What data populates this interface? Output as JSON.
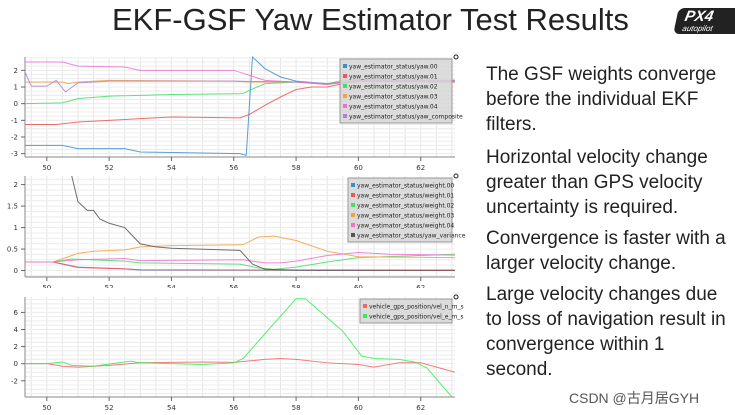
{
  "title": "EKF-GSF Yaw Estimator Test Results",
  "logo_text": "PX4 autopilot",
  "bullets": [
    "The GSF weights converge before the individual EKF filters.",
    "Horizontal velocity change greater than GPS velocity uncertainty is required.",
    "Convergence is faster with a larger velocity change.",
    "Large velocity changes due to loss of navigation result in convergence within 1 second."
  ],
  "watermark": "CSDN @古月居GYH",
  "chart_data": [
    {
      "type": "line",
      "xlim": [
        49.3,
        63.1
      ],
      "ylim": [
        -3.2,
        2.8
      ],
      "xticks": [
        50,
        52,
        54,
        56,
        58,
        60,
        62
      ],
      "yticks": [
        -3,
        -2,
        -1,
        0,
        1,
        2
      ],
      "grid": true,
      "legend": "top-right",
      "series": [
        {
          "name": "yaw_estimator_status/yaw.00",
          "color": "#3b8fd0",
          "points": [
            [
              49.3,
              -2.5
            ],
            [
              50.5,
              -2.5
            ],
            [
              51,
              -2.7
            ],
            [
              52.5,
              -2.7
            ],
            [
              53,
              -2.9
            ],
            [
              56.2,
              -3.0
            ],
            [
              56.4,
              -3.1
            ],
            [
              56.6,
              2.8
            ],
            [
              57,
              2.1
            ],
            [
              57.5,
              1.6
            ],
            [
              58,
              1.35
            ],
            [
              59,
              1.2
            ],
            [
              60,
              1.35
            ],
            [
              63.1,
              1.4
            ]
          ]
        },
        {
          "name": "yaw_estimator_status/yaw.01",
          "color": "#ee5555",
          "points": [
            [
              49.3,
              -1.25
            ],
            [
              50.3,
              -1.25
            ],
            [
              51,
              -1.1
            ],
            [
              53,
              -0.9
            ],
            [
              54,
              -0.8
            ],
            [
              56.2,
              -0.85
            ],
            [
              56.5,
              -0.65
            ],
            [
              57,
              -0.1
            ],
            [
              57.5,
              0.4
            ],
            [
              58,
              0.85
            ],
            [
              58.5,
              1.0
            ],
            [
              59,
              1.0
            ],
            [
              59.5,
              1.2
            ],
            [
              60,
              1.35
            ],
            [
              63.1,
              1.3
            ]
          ]
        },
        {
          "name": "yaw_estimator_status/yaw.02",
          "color": "#44dd66",
          "points": [
            [
              49.3,
              0
            ],
            [
              50.5,
              0.05
            ],
            [
              51,
              0.3
            ],
            [
              52,
              0.45
            ],
            [
              54,
              0.55
            ],
            [
              56.3,
              0.6
            ],
            [
              56.5,
              0.8
            ],
            [
              57,
              1.2
            ],
            [
              58,
              1.3
            ],
            [
              59,
              1.2
            ],
            [
              59.5,
              1.4
            ],
            [
              60,
              1.45
            ],
            [
              63.1,
              1.4
            ]
          ]
        },
        {
          "name": "yaw_estimator_status/yaw.03",
          "color": "#f5a040",
          "points": [
            [
              49.3,
              1.3
            ],
            [
              50.5,
              1.3
            ],
            [
              50.7,
              1.2
            ],
            [
              51,
              1.3
            ],
            [
              52,
              1.4
            ],
            [
              56,
              1.35
            ],
            [
              56.5,
              1.3
            ],
            [
              58,
              1.3
            ],
            [
              59,
              1.15
            ],
            [
              60,
              1.4
            ],
            [
              63.1,
              1.4
            ]
          ]
        },
        {
          "name": "yaw_estimator_status/yaw.04",
          "color": "#f070d0",
          "points": [
            [
              49.3,
              2.5
            ],
            [
              50.5,
              2.5
            ],
            [
              51,
              2.25
            ],
            [
              52.5,
              2.2
            ],
            [
              53,
              2.0
            ],
            [
              56,
              2.0
            ],
            [
              56.5,
              1.7
            ],
            [
              57,
              1.4
            ],
            [
              58,
              1.3
            ],
            [
              59,
              1.2
            ],
            [
              60,
              1.4
            ],
            [
              63.1,
              1.35
            ]
          ]
        },
        {
          "name": "yaw_estimator_status/yaw_composite",
          "color": "#b080d8",
          "points": [
            [
              49.3,
              1.9
            ],
            [
              49.5,
              1.05
            ],
            [
              50,
              1.05
            ],
            [
              50.3,
              1.4
            ],
            [
              50.6,
              0.7
            ],
            [
              51,
              1.25
            ],
            [
              52,
              1.35
            ],
            [
              56,
              1.35
            ],
            [
              58,
              1.3
            ],
            [
              59,
              1.15
            ],
            [
              60,
              1.4
            ],
            [
              63.1,
              1.4
            ]
          ]
        }
      ]
    },
    {
      "type": "line",
      "xlim": [
        49.3,
        63.1
      ],
      "ylim": [
        -0.15,
        2.2
      ],
      "xticks": [
        50,
        52,
        54,
        56,
        58,
        60,
        62
      ],
      "yticks": [
        0,
        0.5,
        1,
        1.5,
        2
      ],
      "grid": true,
      "legend": "top-right",
      "series": [
        {
          "name": "yaw_estimator_status/weight.00",
          "color": "#3b8fd0",
          "points": [
            [
              49.3,
              0.2
            ],
            [
              50.2,
              0.2
            ],
            [
              51,
              0.08
            ],
            [
              52.5,
              0.04
            ],
            [
              53,
              0.01
            ],
            [
              63.1,
              0
            ]
          ]
        },
        {
          "name": "yaw_estimator_status/weight.01",
          "color": "#ee5555",
          "points": [
            [
              49.3,
              0.2
            ],
            [
              50.2,
              0.2
            ],
            [
              51,
              0.07
            ],
            [
              52.5,
              0.04
            ],
            [
              53,
              0.02
            ],
            [
              63.1,
              0
            ]
          ]
        },
        {
          "name": "yaw_estimator_status/weight.02",
          "color": "#44dd66",
          "points": [
            [
              49.3,
              0.2
            ],
            [
              50.2,
              0.2
            ],
            [
              50.8,
              0.27
            ],
            [
              52.5,
              0.22
            ],
            [
              53,
              0.18
            ],
            [
              56.2,
              0.15
            ],
            [
              56.8,
              0.06
            ],
            [
              57.3,
              0.03
            ],
            [
              58,
              0.08
            ],
            [
              59,
              0.2
            ],
            [
              60,
              0.3
            ],
            [
              63.1,
              0.38
            ]
          ]
        },
        {
          "name": "yaw_estimator_status/weight.03",
          "color": "#f5a040",
          "points": [
            [
              49.3,
              0.2
            ],
            [
              50.2,
              0.2
            ],
            [
              51,
              0.4
            ],
            [
              51.5,
              0.45
            ],
            [
              52.5,
              0.48
            ],
            [
              53,
              0.55
            ],
            [
              54,
              0.58
            ],
            [
              56.3,
              0.6
            ],
            [
              56.8,
              0.78
            ],
            [
              57.3,
              0.8
            ],
            [
              58,
              0.7
            ],
            [
              59,
              0.45
            ],
            [
              60,
              0.32
            ],
            [
              63.1,
              0.3
            ]
          ]
        },
        {
          "name": "yaw_estimator_status/weight.04",
          "color": "#f070d0",
          "points": [
            [
              49.3,
              0.2
            ],
            [
              50.2,
              0.2
            ],
            [
              51,
              0.25
            ],
            [
              52.5,
              0.28
            ],
            [
              53,
              0.23
            ],
            [
              56.3,
              0.25
            ],
            [
              57,
              0.18
            ],
            [
              57.5,
              0.18
            ],
            [
              58,
              0.22
            ],
            [
              59,
              0.35
            ],
            [
              60,
              0.42
            ],
            [
              61,
              0.38
            ],
            [
              63.1,
              0.36
            ]
          ]
        },
        {
          "name": "yaw_estimator_status/yaw_variance",
          "color": "#555555",
          "points": [
            [
              50.8,
              2.2
            ],
            [
              51,
              1.6
            ],
            [
              51.3,
              1.4
            ],
            [
              51.5,
              1.4
            ],
            [
              51.7,
              1.2
            ],
            [
              52,
              1.1
            ],
            [
              52.5,
              1.0
            ],
            [
              53,
              0.62
            ],
            [
              53.5,
              0.55
            ],
            [
              54,
              0.52
            ],
            [
              56.2,
              0.47
            ],
            [
              56.6,
              0.15
            ],
            [
              57,
              0.03
            ],
            [
              58,
              0.01
            ],
            [
              63.1,
              0.01
            ]
          ]
        }
      ]
    },
    {
      "type": "line",
      "xlim": [
        49.3,
        63.1
      ],
      "ylim": [
        -3.9,
        7.8
      ],
      "xticks": [
        50,
        52,
        54,
        56,
        58,
        60,
        62
      ],
      "yticks": [
        -2,
        0,
        2,
        4,
        6
      ],
      "grid": true,
      "legend": "top-right",
      "series": [
        {
          "name": "vehicle_gps_position/vel_n_m_s",
          "color": "#ee6666",
          "points": [
            [
              49.3,
              0
            ],
            [
              50,
              0
            ],
            [
              50.5,
              -0.3
            ],
            [
              51,
              -0.4
            ],
            [
              51.5,
              -0.3
            ],
            [
              52,
              -0.2
            ],
            [
              53,
              0.1
            ],
            [
              54,
              0.15
            ],
            [
              55,
              0.2
            ],
            [
              56,
              0.15
            ],
            [
              57,
              0.5
            ],
            [
              57.5,
              0.6
            ],
            [
              58,
              0.5
            ],
            [
              59,
              0.1
            ],
            [
              60,
              -0.1
            ],
            [
              60.5,
              -0.4
            ],
            [
              61.3,
              0.1
            ],
            [
              62,
              0.1
            ],
            [
              63.1,
              -1
            ]
          ]
        },
        {
          "name": "vehicle_gps_position/vel_e_m_s",
          "color": "#33ee55",
          "points": [
            [
              49.3,
              0
            ],
            [
              50,
              0
            ],
            [
              50.5,
              0.2
            ],
            [
              50.8,
              -0.2
            ],
            [
              51.5,
              -0.3
            ],
            [
              52.7,
              0.3
            ],
            [
              53,
              0.1
            ],
            [
              54,
              0
            ],
            [
              55,
              -0.1
            ],
            [
              56,
              0.1
            ],
            [
              56.3,
              0.6
            ],
            [
              57,
              3.5
            ],
            [
              58,
              7.6
            ],
            [
              58.3,
              7.6
            ],
            [
              59.5,
              3.8
            ],
            [
              60.1,
              0.9
            ],
            [
              60.5,
              0.6
            ],
            [
              61.3,
              0.5
            ],
            [
              61.8,
              0.2
            ],
            [
              62.2,
              -0.5
            ],
            [
              63,
              -3.9
            ]
          ]
        }
      ]
    }
  ]
}
